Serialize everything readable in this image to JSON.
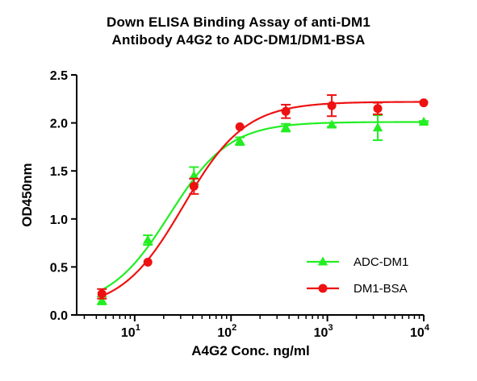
{
  "chart_data": {
    "type": "scatter",
    "title_lines": [
      "Down ELISA Binding Assay of anti-DM1",
      "Antibody A4G2 to ADC-DM1/DM1-BSA"
    ],
    "xlabel": "A4G2 Conc. ng/ml",
    "ylabel": "OD450nm",
    "x_scale": "log",
    "xlim": [
      2.5,
      10000
    ],
    "ylim": [
      0,
      2.5
    ],
    "y_ticks": [
      "0.0",
      "0.5",
      "1.0",
      "1.5",
      "2.0",
      "2.5"
    ],
    "x_ticks": [
      {
        "base": "10",
        "exp": "1",
        "value": 10
      },
      {
        "base": "10",
        "exp": "2",
        "value": 100
      },
      {
        "base": "10",
        "exp": "3",
        "value": 1000
      },
      {
        "base": "10",
        "exp": "4",
        "value": 10000
      }
    ],
    "legend_position": "bottom-right",
    "series": [
      {
        "name": "ADC-DM1",
        "color": "#22ee22",
        "marker": "triangle",
        "x": [
          4.57,
          13.7,
          41.2,
          123.5,
          370.4,
          1111,
          3333,
          10000
        ],
        "y": [
          0.15,
          0.78,
          1.45,
          1.81,
          1.95,
          1.98,
          1.95,
          2.01
        ],
        "err": [
          0.04,
          0.05,
          0.09,
          0.04,
          0.04,
          0.02,
          0.13,
          0.01
        ],
        "fit": {
          "bottom": 0.08,
          "top": 2.01,
          "ec50": 23,
          "hill": 1.4
        }
      },
      {
        "name": "DM1-BSA",
        "color": "#ee1111",
        "marker": "circle",
        "x": [
          4.57,
          13.7,
          41.2,
          123.5,
          370.4,
          1111,
          3333,
          10000
        ],
        "y": [
          0.22,
          0.55,
          1.34,
          1.96,
          2.12,
          2.18,
          2.15,
          2.21
        ],
        "err": [
          0.05,
          0.0,
          0.08,
          0.0,
          0.07,
          0.11,
          0.06,
          0.0
        ],
        "fit": {
          "bottom": 0.05,
          "top": 2.22,
          "ec50": 32,
          "hill": 1.35
        }
      }
    ]
  }
}
